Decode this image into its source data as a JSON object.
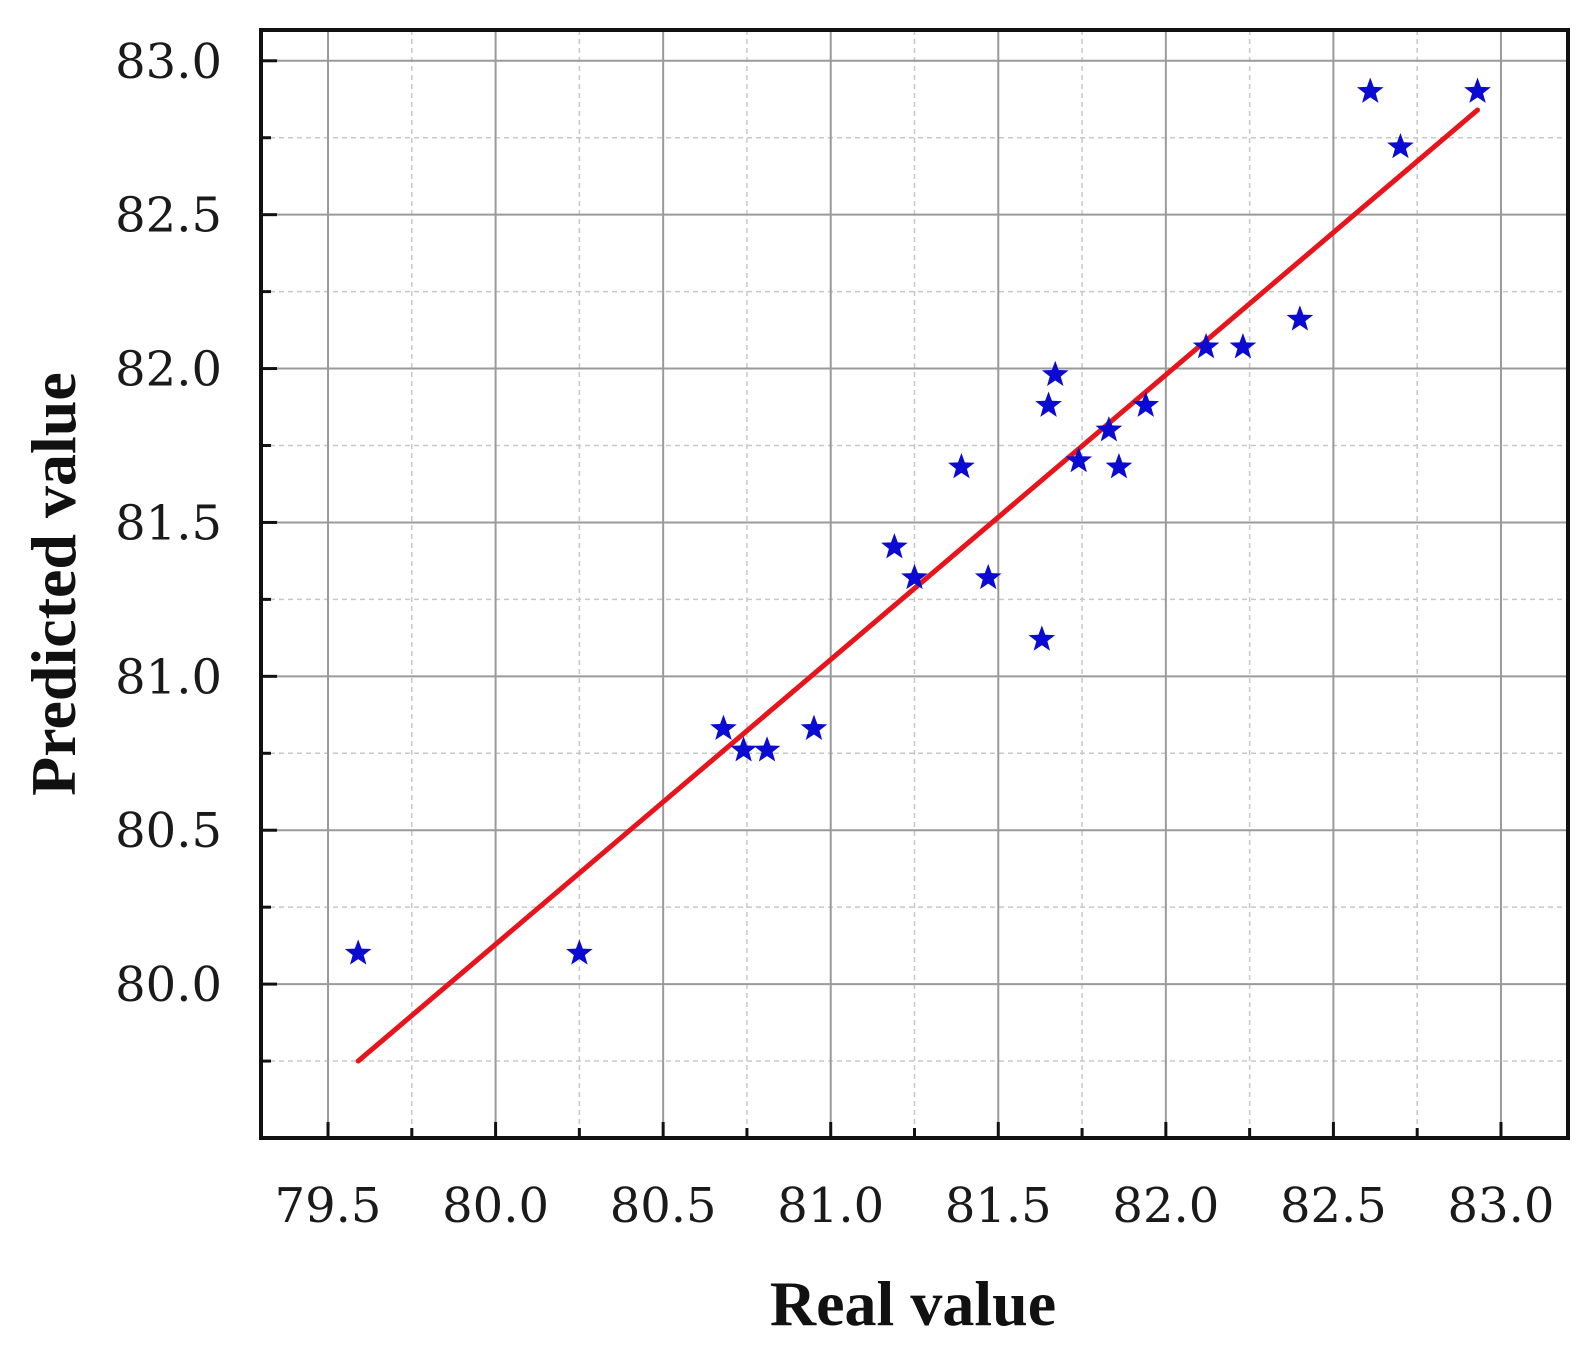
{
  "chart_data": {
    "type": "scatter",
    "xlabel": "Real value",
    "ylabel": "Predicted value",
    "xlim": [
      79.3,
      83.2
    ],
    "ylim": [
      79.5,
      83.1
    ],
    "x_ticks": [
      "79.5",
      "80.0",
      "80.5",
      "81.0",
      "81.5",
      "82.0",
      "82.5",
      "83.0"
    ],
    "y_ticks": [
      "80.0",
      "80.5",
      "81.0",
      "81.5",
      "82.0",
      "82.5",
      "83.0"
    ],
    "grid": true,
    "series": [
      {
        "marker": "star",
        "color": "#0a0ad2",
        "x": [
          79.59,
          80.25,
          80.68,
          80.74,
          80.81,
          80.95,
          81.19,
          81.25,
          81.39,
          81.47,
          81.63,
          81.65,
          81.67,
          81.74,
          81.83,
          81.86,
          81.94,
          82.12,
          82.23,
          82.4,
          82.61,
          82.7,
          82.93
        ],
        "y": [
          80.1,
          80.1,
          80.83,
          80.76,
          80.76,
          80.83,
          81.42,
          81.32,
          81.68,
          81.32,
          81.12,
          81.88,
          81.98,
          81.7,
          81.8,
          81.68,
          81.88,
          82.07,
          82.07,
          82.16,
          82.9,
          82.72,
          82.9
        ]
      }
    ],
    "fit_line": {
      "color": "#e8141c",
      "x": [
        79.59,
        82.93
      ],
      "y": [
        79.75,
        82.84
      ]
    }
  }
}
